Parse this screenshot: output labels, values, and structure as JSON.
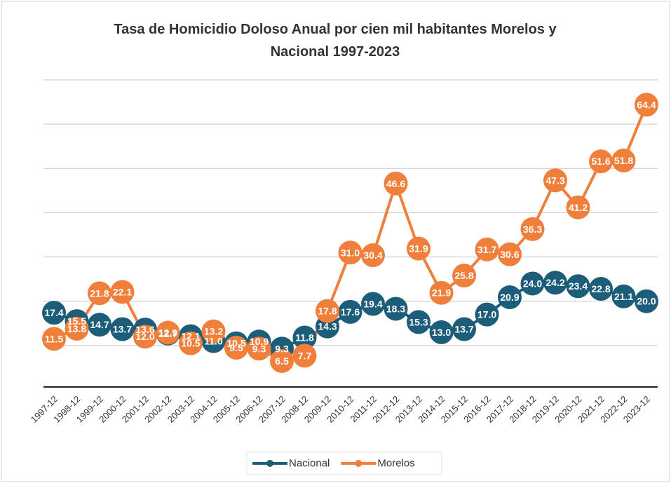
{
  "chart_data": {
    "type": "line",
    "title": "Tasa de Homicidio Doloso Anual por cien mil habitantes Morelos y Nacional 1997-2023",
    "categories": [
      "1997-12",
      "1998-12",
      "1999-12",
      "2000-12",
      "2001-12",
      "2002-12",
      "2003-12",
      "2004-12",
      "2005-12",
      "2006-12",
      "2007-12",
      "2008-12",
      "2009-12",
      "2010-12",
      "2011-12",
      "2012-12",
      "2013-12",
      "2014-12",
      "2015-12",
      "2016-12",
      "2017-12",
      "2018-12",
      "2019-12",
      "2020-12",
      "2021-12",
      "2022-12",
      "2023-12"
    ],
    "series": [
      {
        "name": "Nacional",
        "color": "#1c5d7a",
        "values": [
          17.4,
          15.5,
          14.7,
          13.7,
          13.6,
          12.7,
          12.1,
          11.0,
          10.5,
          10.9,
          9.3,
          11.8,
          14.3,
          17.6,
          19.4,
          18.3,
          15.3,
          13.0,
          13.7,
          17.0,
          20.9,
          24.0,
          24.2,
          23.4,
          22.8,
          21.1,
          20.0
        ]
      },
      {
        "name": "Morelos",
        "color": "#f07f3c",
        "values": [
          11.5,
          13.8,
          21.8,
          22.1,
          12.0,
          12.9,
          10.5,
          13.2,
          9.5,
          9.3,
          6.5,
          7.7,
          17.8,
          31.0,
          30.4,
          46.6,
          31.9,
          21.9,
          25.8,
          31.7,
          30.6,
          36.3,
          47.3,
          41.2,
          51.6,
          51.8,
          64.4
        ]
      }
    ],
    "ylim": [
      0,
      70
    ],
    "yticks": [
      0,
      10,
      20,
      30,
      40,
      50,
      60,
      70
    ],
    "grid": true,
    "legend": "bottom"
  }
}
